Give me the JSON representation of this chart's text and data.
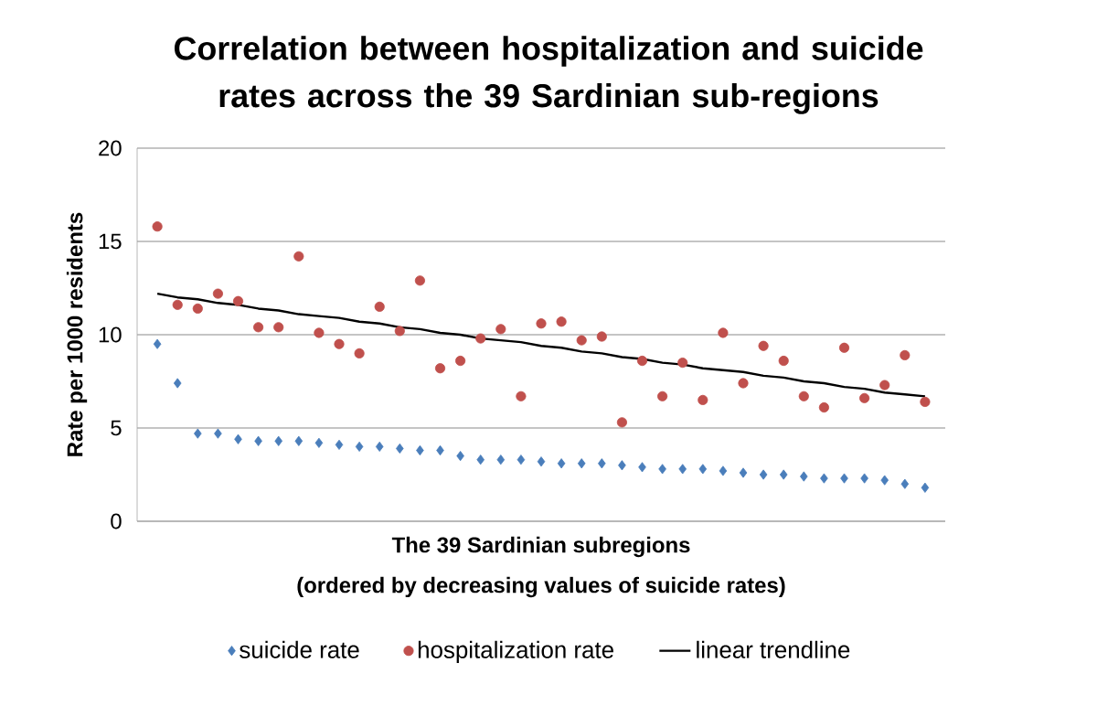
{
  "chart_data": {
    "type": "scatter",
    "title": "Correlation between hospitalization and suicide rates across the 39 Sardinian sub-regions",
    "xlabel": "The 39 Sardinian subregions",
    "ylabel": "Rate per 1000 residents",
    "annotations": [
      "(ordered by decreasing values of suicide rates)"
    ],
    "categories": [
      null,
      null,
      null,
      null,
      null,
      null,
      null,
      null,
      null,
      null,
      null,
      null,
      null,
      null,
      null,
      null,
      null,
      null,
      null,
      null,
      null,
      null,
      null,
      null,
      null,
      null,
      null,
      null,
      null,
      null,
      null,
      null,
      null,
      null,
      null,
      null,
      null,
      null,
      null
    ],
    "ylim": [
      0,
      20
    ],
    "yticks": [
      0,
      5,
      10,
      15,
      20
    ],
    "grid": "y",
    "legend": "bottom",
    "series": [
      {
        "name": "suicide rate",
        "color": "#4a7ebb",
        "marker": "diamond",
        "values": [
          9.5,
          7.4,
          4.7,
          4.7,
          4.4,
          4.3,
          4.3,
          4.3,
          4.2,
          4.1,
          4.0,
          4.0,
          3.9,
          3.8,
          3.8,
          3.5,
          3.3,
          3.3,
          3.3,
          3.2,
          3.1,
          3.1,
          3.1,
          3.0,
          2.9,
          2.8,
          2.8,
          2.8,
          2.7,
          2.6,
          2.5,
          2.5,
          2.4,
          2.3,
          2.3,
          2.3,
          2.2,
          2.0,
          1.8
        ]
      },
      {
        "name": "hospitalization rate",
        "color": "#c0504d",
        "marker": "circle",
        "values": [
          15.8,
          11.6,
          11.4,
          12.2,
          11.8,
          10.4,
          10.4,
          14.2,
          10.1,
          9.5,
          9.0,
          11.5,
          10.2,
          12.9,
          8.2,
          8.6,
          9.8,
          10.3,
          6.7,
          10.6,
          10.7,
          9.7,
          9.9,
          5.3,
          8.6,
          6.7,
          8.5,
          6.5,
          10.1,
          7.4,
          9.4,
          8.6,
          6.7,
          6.1,
          9.3,
          6.6,
          7.3,
          8.9,
          6.4
        ]
      },
      {
        "name": "linear trendline",
        "type": "line",
        "color": "#000000",
        "line_style": "solid",
        "values": [
          12.2,
          12.0,
          11.9,
          11.7,
          11.6,
          11.4,
          11.3,
          11.1,
          11.0,
          10.9,
          10.7,
          10.6,
          10.4,
          10.3,
          10.1,
          10.0,
          9.8,
          9.7,
          9.6,
          9.4,
          9.3,
          9.1,
          9.0,
          8.8,
          8.7,
          8.5,
          8.4,
          8.2,
          8.1,
          8.0,
          7.8,
          7.7,
          7.5,
          7.4,
          7.2,
          7.1,
          6.9,
          6.8,
          6.7
        ]
      }
    ]
  }
}
